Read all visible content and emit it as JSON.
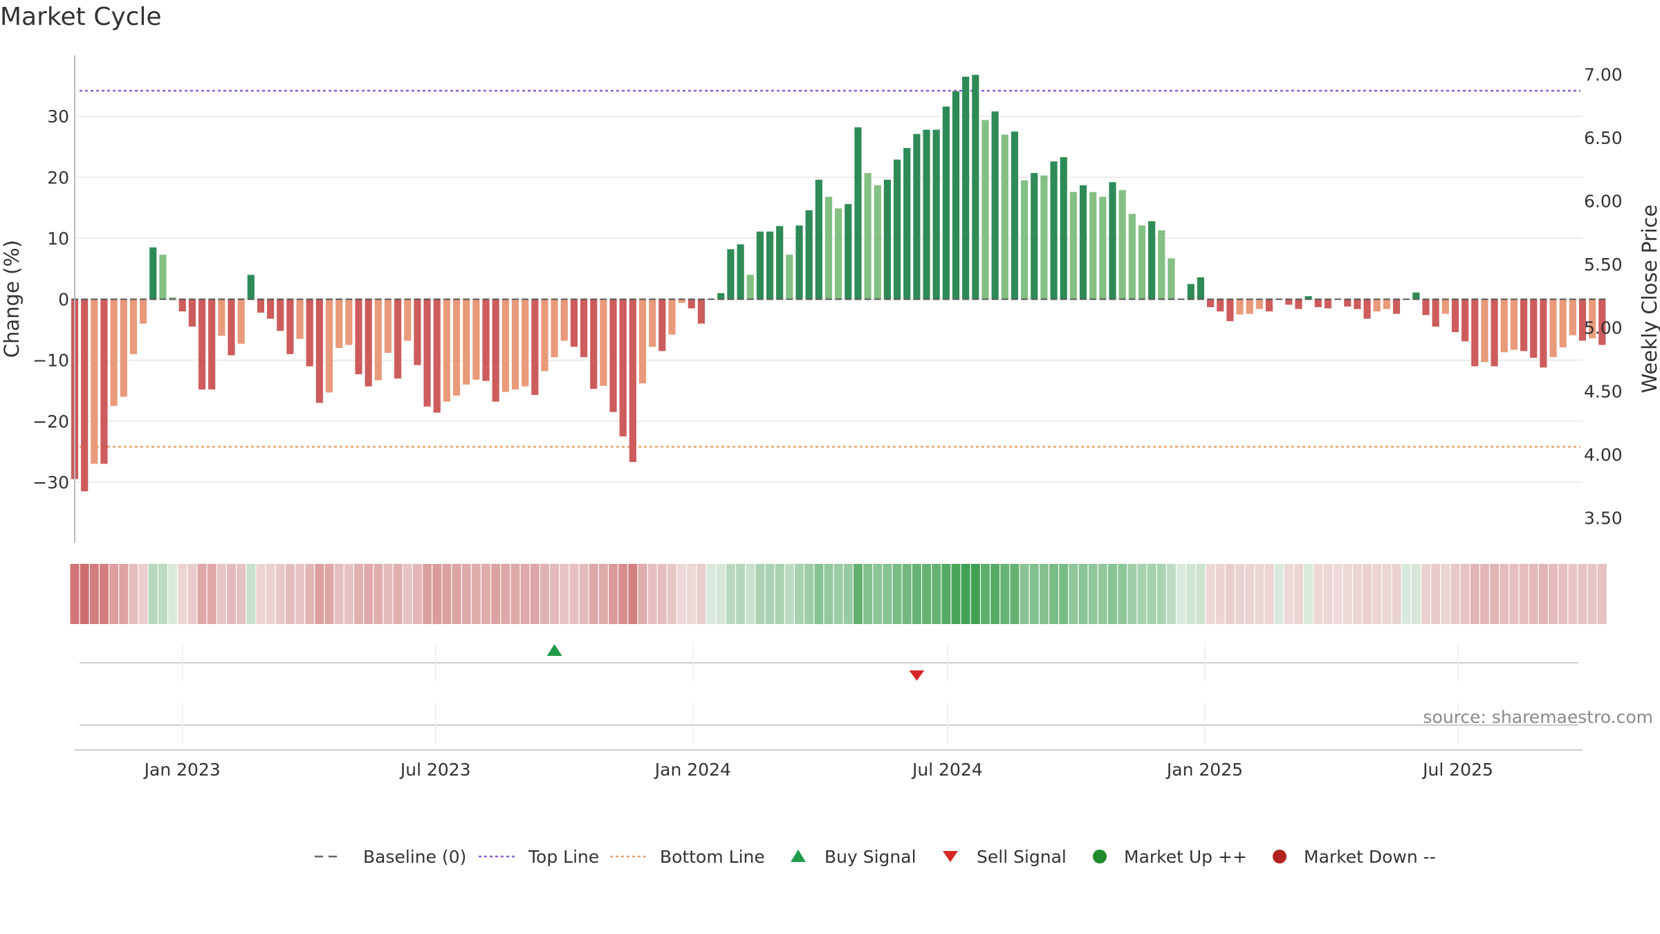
{
  "chart_data": {
    "type": "bar",
    "title": "Market Cycle",
    "ylabel": "Change (%)",
    "y2label": "Weekly Close Price",
    "ylim": [
      -40,
      40
    ],
    "y2lim": [
      3.3,
      7.15
    ],
    "yticks": [
      -30,
      -20,
      -10,
      0,
      10,
      20,
      30
    ],
    "yticklabels": [
      "−30",
      "−20",
      "−10",
      "0",
      "10",
      "20",
      "30"
    ],
    "y2ticks": [
      3.5,
      4.0,
      4.5,
      5.0,
      5.5,
      6.0,
      6.5,
      7.0
    ],
    "y2ticklabels": [
      "3.50",
      "4.00",
      "4.50",
      "5.00",
      "5.50",
      "6.00",
      "6.50",
      "7.00"
    ],
    "x_start": "2022-10-16",
    "x_end": "2025-09-28",
    "xticks": [
      {
        "date": "2023-01-01",
        "label": "Jan 2023"
      },
      {
        "date": "2023-07-01",
        "label": "Jul 2023"
      },
      {
        "date": "2024-01-01",
        "label": "Jan 2024"
      },
      {
        "date": "2024-07-01",
        "label": "Jul 2024"
      },
      {
        "date": "2025-01-01",
        "label": "Jan 2025"
      },
      {
        "date": "2025-07-01",
        "label": "Jul 2025"
      }
    ],
    "first_week": "2022-10-16",
    "week_interval_days": 7,
    "values": [
      -29.5,
      -31.5,
      -27,
      -27,
      -17.5,
      -16,
      -9,
      -4,
      8.5,
      7.3,
      0.3,
      -2,
      -4.5,
      -14.8,
      -14.8,
      -6,
      -9.2,
      -7.3,
      4,
      -2.2,
      -3.2,
      -5.2,
      -9,
      -6.5,
      -11,
      -17,
      -15.3,
      -8,
      -7.5,
      -12.3,
      -14.3,
      -13.3,
      -8.8,
      -13,
      -6.8,
      -10.8,
      -17.6,
      -18.6,
      -16.8,
      -15.8,
      -14,
      -13.2,
      -13.4,
      -16.8,
      -15.2,
      -14.8,
      -14.3,
      -15.7,
      -11.8,
      -9.5,
      -6.8,
      -7.8,
      -9.5,
      -14.7,
      -14.2,
      -18.5,
      -22.5,
      -26.7,
      -13.8,
      -7.8,
      -8.5,
      -5.8,
      -0.6,
      -1.5,
      -4,
      0,
      1,
      8.2,
      9,
      4,
      11.1,
      11.1,
      12,
      7.3,
      12.1,
      14.6,
      19.6,
      16.8,
      14.9,
      15.6,
      28.2,
      20.7,
      18.7,
      19.6,
      22.9,
      24.8,
      27.1,
      27.8,
      27.8,
      31.6,
      34.1,
      36.5,
      36.8,
      29.4,
      30.8,
      27,
      27.5,
      19.5,
      20.7,
      20.3,
      22.6,
      23.3,
      17.6,
      18.7,
      17.6,
      16.8,
      19.2,
      17.9,
      14,
      12.1,
      12.8,
      11.3,
      6.7,
      0.1,
      2.5,
      3.6,
      -1.3,
      -2,
      -3.6,
      -2.5,
      -2.4,
      -1.6,
      -2,
      0,
      -0.9,
      -1.6,
      0.5,
      -1.3,
      -1.5,
      -0.1,
      -1.2,
      -1.6,
      -3.2,
      -2,
      -1.6,
      -2.4,
      0,
      1.1,
      -2.6,
      -4.5,
      -2.4,
      -5.4,
      -6.9,
      -11,
      -10.3,
      -11,
      -8.7,
      -8.3,
      -8.5,
      -9.6,
      -11.2,
      -9.5,
      -7.9,
      -5.9,
      -6.8,
      -6.4,
      -7.5
    ],
    "price": {
      "visible": false
    },
    "top_line": 34.2,
    "bottom_line": -24.2,
    "heat_strip": {
      "domain": [
        -31.5,
        36.8
      ]
    },
    "buy_signals": [
      "2023-09-24"
    ],
    "sell_signals": [
      "2024-06-09"
    ],
    "legend": {
      "position": "bottom-center",
      "entries": [
        {
          "label": "Baseline (0)",
          "symbol": "dash",
          "color": "#666666"
        },
        {
          "label": "Top Line",
          "symbol": "dotted",
          "color": "#8e5fd1"
        },
        {
          "label": "Bottom Line",
          "symbol": "dotted",
          "color": "#e6a46c"
        },
        {
          "label": "Buy Signal",
          "symbol": "triangle-up",
          "color": "#1f9a49"
        },
        {
          "label": "Sell Signal",
          "symbol": "triangle-down",
          "color": "#d62728"
        },
        {
          "label": "Market Up ++",
          "symbol": "circle",
          "color": "#1f8a2a"
        },
        {
          "label": "Market Down --",
          "symbol": "circle",
          "color": "#b22222"
        }
      ]
    },
    "grid": true
  },
  "colors": {
    "strong_up": "#2e8b57",
    "weak_up": "#84c083",
    "strong_down": "#cd5c5c",
    "weak_down": "#e99a7a",
    "top_line": "#8e5fd1",
    "bottom_line": "#e6a46c",
    "buy": "#1f9a49",
    "sell": "#d62728"
  },
  "source": "source: sharemaestro.com"
}
